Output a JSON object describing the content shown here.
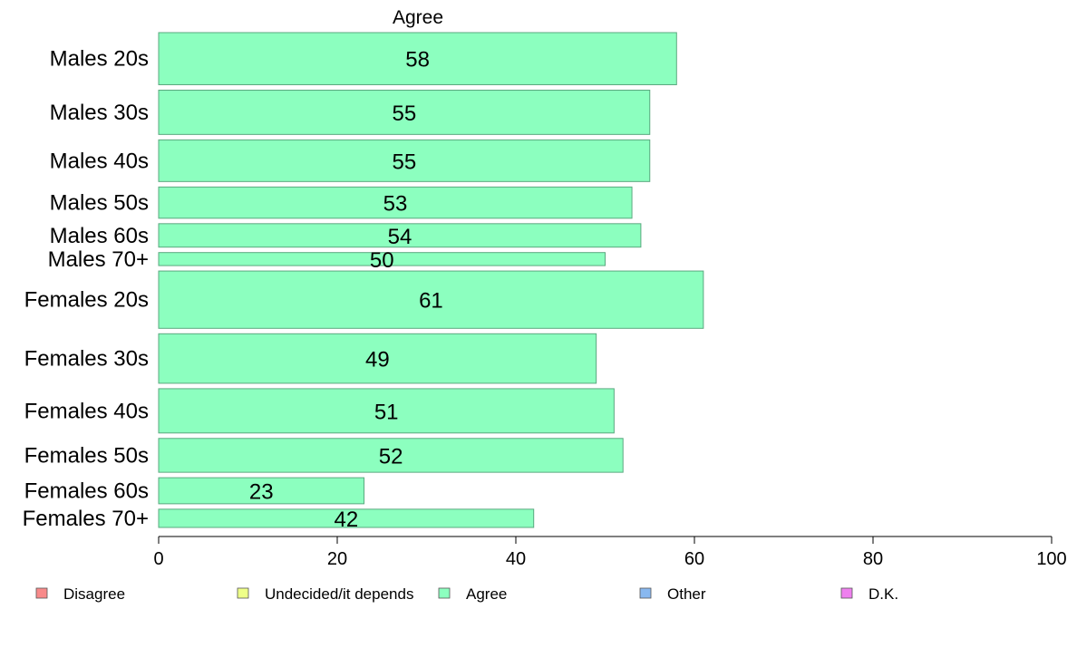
{
  "chart_data": {
    "type": "bar",
    "orientation": "horizontal",
    "title": "Agree",
    "categories": [
      "Males 20s",
      "Males 30s",
      "Males 40s",
      "Males 50s",
      "Males 60s",
      "Males 70+",
      "Females 20s",
      "Females 30s",
      "Females 40s",
      "Females 50s",
      "Females 60s",
      "Females 70+"
    ],
    "relative_group_size": [
      1.0,
      0.85,
      0.8,
      0.6,
      0.45,
      0.25,
      1.1,
      0.95,
      0.85,
      0.65,
      0.5,
      0.35
    ],
    "series": [
      {
        "name": "Agree",
        "color": "#8cffbf",
        "values": [
          58,
          55,
          55,
          53,
          54,
          50,
          61,
          49,
          51,
          52,
          23,
          42
        ]
      }
    ],
    "xlim": [
      0,
      100
    ],
    "xticks": [
      "0",
      "20",
      "40",
      "60",
      "80",
      "100"
    ],
    "grid": false,
    "legend_position": "bottom",
    "legend": [
      {
        "label": "Disagree",
        "color": "#f88a8a"
      },
      {
        "label": "Undecided/it depends",
        "color": "#eeff88"
      },
      {
        "label": "Agree",
        "color": "#8cffbf"
      },
      {
        "label": "Other",
        "color": "#88b8f0"
      },
      {
        "label": "D.K.",
        "color": "#ee80ee"
      }
    ]
  }
}
